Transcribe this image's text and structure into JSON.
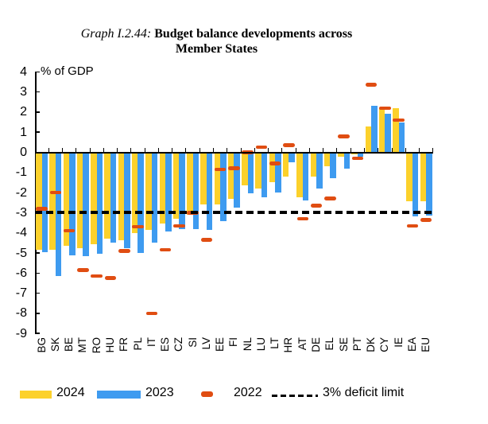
{
  "title": {
    "prefix": "Graph I.2.44:",
    "line1": "Budget balance developments across",
    "line2": "Member States"
  },
  "axis": {
    "unit_label": "% of GDP",
    "y_ticks": [
      4,
      3,
      2,
      1,
      0,
      -1,
      -2,
      -3,
      -4,
      -5,
      -6,
      -7,
      -8,
      -9
    ]
  },
  "colors": {
    "yellow_2024": "#FCD12B",
    "blue_2023": "#3E9BF0",
    "orange_2022": "#E04D12",
    "reference_black": "#000000"
  },
  "chart_data": {
    "type": "bar",
    "title": "Graph I.2.44: Budget balance developments across Member States",
    "ylabel": "% of GDP",
    "ylim": [
      -9,
      4
    ],
    "grid": false,
    "legend_position": "bottom",
    "categories": [
      "BG",
      "SK",
      "BE",
      "MT",
      "RO",
      "HU",
      "FR",
      "PL",
      "IT",
      "ES",
      "CZ",
      "SI",
      "LV",
      "EE",
      "FI",
      "NL",
      "LU",
      "LT",
      "HR",
      "AT",
      "DE",
      "EL",
      "SE",
      "PT",
      "DK",
      "CY",
      "IE",
      "EA",
      "EU"
    ],
    "series": [
      {
        "name": "2024",
        "style": "bar",
        "color": "#FCD12B",
        "values": [
          -4.85,
          -4.85,
          -4.65,
          -4.75,
          -4.55,
          -4.3,
          -4.35,
          -4.0,
          -3.85,
          -3.55,
          -3.3,
          -3.1,
          -2.6,
          -2.6,
          -2.3,
          -1.65,
          -1.8,
          -1.5,
          -1.2,
          -2.25,
          -1.2,
          -0.7,
          -0.2,
          -0.1,
          1.3,
          2.2,
          2.2,
          -2.45,
          -2.45
        ]
      },
      {
        "name": "2023",
        "style": "bar",
        "color": "#3E9BF0",
        "values": [
          -4.95,
          -6.15,
          -5.1,
          -5.15,
          -5.05,
          -4.5,
          -4.75,
          -5.0,
          -4.5,
          -3.95,
          -3.8,
          -3.8,
          -3.85,
          -3.4,
          -2.75,
          -2.05,
          -2.25,
          -2.0,
          -0.5,
          -2.4,
          -1.8,
          -1.3,
          -0.8,
          -0.2,
          2.3,
          1.9,
          1.5,
          -3.2,
          -3.15
        ]
      },
      {
        "name": "2022",
        "style": "dash-marker",
        "color": "#E04D12",
        "values": [
          -2.8,
          -2.0,
          -3.9,
          -5.85,
          -6.15,
          -6.25,
          -4.9,
          -3.7,
          -8.0,
          -4.85,
          -3.65,
          -3.0,
          -4.35,
          -0.85,
          -0.8,
          0.0,
          0.25,
          -0.55,
          0.35,
          -3.3,
          -2.65,
          -2.3,
          0.8,
          -0.3,
          3.35,
          2.2,
          1.6,
          -3.65,
          -3.35
        ]
      }
    ],
    "reference_line": {
      "label": "3% deficit limit",
      "value": -3,
      "style": "dashed",
      "color": "#000000"
    }
  },
  "legend": {
    "item_2024": "2024",
    "item_2023": "2023",
    "item_2022": "2022",
    "item_limit": "3% deficit limit"
  }
}
